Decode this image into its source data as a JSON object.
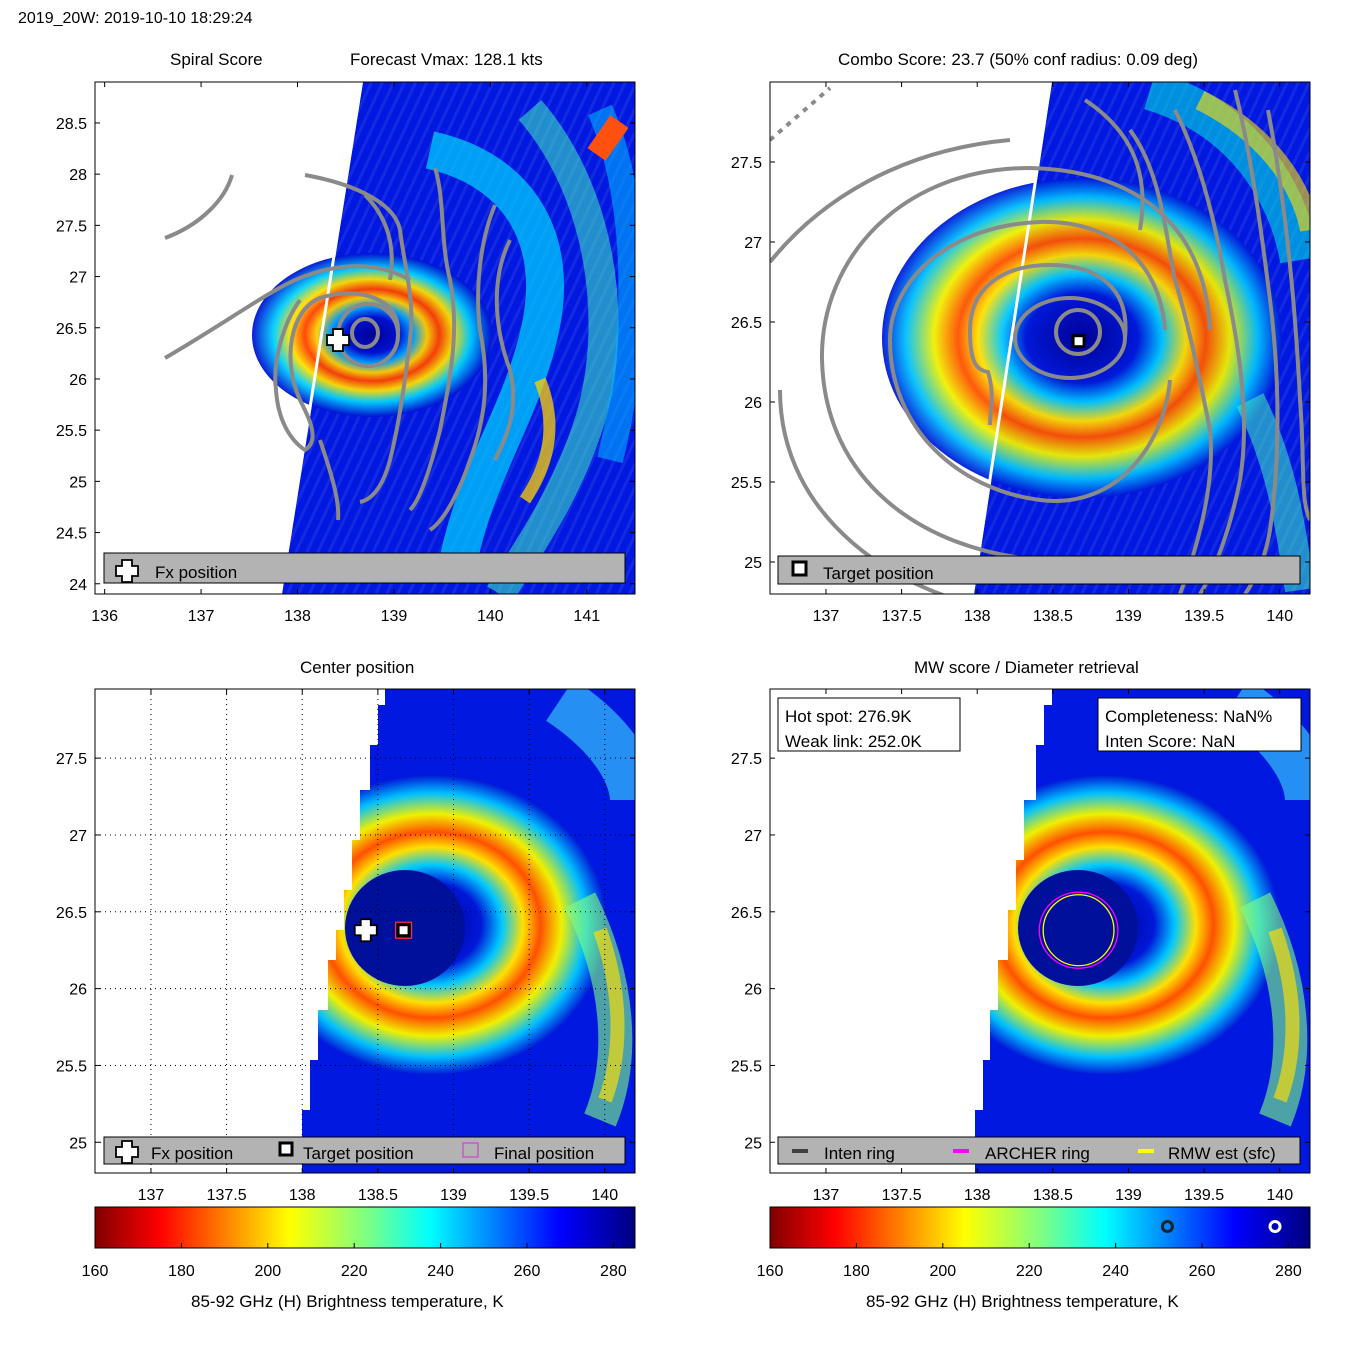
{
  "header": {
    "title": "2019_20W: 2019-10-10 18:29:24"
  },
  "colors": {
    "contour": "#8a8a8a",
    "legend_bg": "#b3b3b3",
    "archer_ring": "#ff00ff",
    "rmw_ring": "#ffff00",
    "inten_ring": "#404040",
    "final_marker": "#cc44cc"
  },
  "chart_data": [
    {
      "id": "spiral",
      "type": "heatmap",
      "title": "Spiral Score",
      "subtitle": "Forecast Vmax: 128.1 kts",
      "xlim": [
        135.9,
        141.5
      ],
      "ylim": [
        23.9,
        28.9
      ],
      "xticks": [
        136,
        137,
        138,
        139,
        140,
        141
      ],
      "yticks": [
        24,
        24.5,
        25,
        25.5,
        26,
        26.5,
        27,
        27.5,
        28,
        28.5
      ],
      "markers": [
        {
          "kind": "plus",
          "x": 138.42,
          "y": 26.38,
          "label": "Fx position"
        }
      ],
      "legend": [
        {
          "symbol": "plus",
          "label": "Fx position"
        }
      ],
      "legend_position": "bottom"
    },
    {
      "id": "combo",
      "type": "heatmap",
      "title": "Combo Score: 23.7  (50% conf radius: 0.09 deg)",
      "xlim": [
        136.63,
        140.2
      ],
      "ylim": [
        24.8,
        28.0
      ],
      "xticks": [
        137,
        137.5,
        138,
        138.5,
        139,
        139.5,
        140
      ],
      "yticks": [
        25,
        25.5,
        26,
        26.5,
        27,
        27.5
      ],
      "markers": [
        {
          "kind": "square",
          "x": 138.67,
          "y": 26.38,
          "label": "Target position"
        }
      ],
      "legend": [
        {
          "symbol": "square",
          "label": "Target position"
        }
      ],
      "legend_position": "bottom"
    },
    {
      "id": "center",
      "type": "heatmap",
      "title": "Center position",
      "xlim": [
        136.63,
        140.2
      ],
      "ylim": [
        24.8,
        27.95
      ],
      "xticks": [
        137,
        137.5,
        138,
        138.5,
        139,
        139.5,
        140
      ],
      "yticks": [
        25,
        25.5,
        26,
        26.5,
        27,
        27.5
      ],
      "grid": true,
      "markers": [
        {
          "kind": "plus",
          "x": 138.42,
          "y": 26.38,
          "label": "Fx position"
        },
        {
          "kind": "square",
          "x": 138.67,
          "y": 26.38,
          "label": "Target position"
        },
        {
          "kind": "final",
          "x": 138.67,
          "y": 26.38,
          "label": "Final position"
        }
      ],
      "legend": [
        {
          "symbol": "plus",
          "label": "Fx position"
        },
        {
          "symbol": "square",
          "label": "Target position"
        },
        {
          "symbol": "final",
          "label": "Final position"
        }
      ],
      "legend_position": "bottom"
    },
    {
      "id": "mw",
      "type": "heatmap",
      "title": "MW score / Diameter retrieval",
      "xlim": [
        136.63,
        140.2
      ],
      "ylim": [
        24.8,
        27.95
      ],
      "xticks": [
        137,
        137.5,
        138,
        138.5,
        139,
        139.5,
        140
      ],
      "yticks": [
        25,
        25.5,
        26,
        26.5,
        27,
        27.5
      ],
      "info_left": [
        "Hot spot: 276.9K",
        "Weak link: 252.0K"
      ],
      "info_right": [
        "Completeness: NaN%",
        "Inten Score: NaN"
      ],
      "rings": [
        {
          "name": "ARCHER ring",
          "x": 138.67,
          "y": 26.38,
          "rx_deg": 0.5,
          "ry_deg": 0.45
        },
        {
          "name": "RMW est (sfc)",
          "x": 138.67,
          "y": 26.38,
          "rx_deg": 0.45,
          "ry_deg": 0.42
        }
      ],
      "legend": [
        {
          "symbol": "line",
          "color_key": "inten_ring",
          "label": "Inten ring"
        },
        {
          "symbol": "line",
          "color_key": "archer_ring",
          "label": "ARCHER ring"
        },
        {
          "symbol": "line",
          "color_key": "rmw_ring",
          "label": "RMW est (sfc)"
        }
      ],
      "legend_position": "bottom"
    }
  ],
  "colorbars": [
    {
      "id": "cbar-left",
      "range": [
        160,
        285
      ],
      "ticks": [
        160,
        180,
        200,
        220,
        240,
        260,
        280
      ],
      "label": "85-92 GHz (H) Brightness temperature, K",
      "markers": []
    },
    {
      "id": "cbar-right",
      "range": [
        160,
        285
      ],
      "ticks": [
        160,
        180,
        200,
        220,
        240,
        260,
        280
      ],
      "label": "85-92 GHz (H) Brightness temperature, K",
      "markers": [
        {
          "value": 252.0,
          "style": "dark"
        },
        {
          "value": 276.9,
          "style": "white"
        }
      ]
    }
  ]
}
